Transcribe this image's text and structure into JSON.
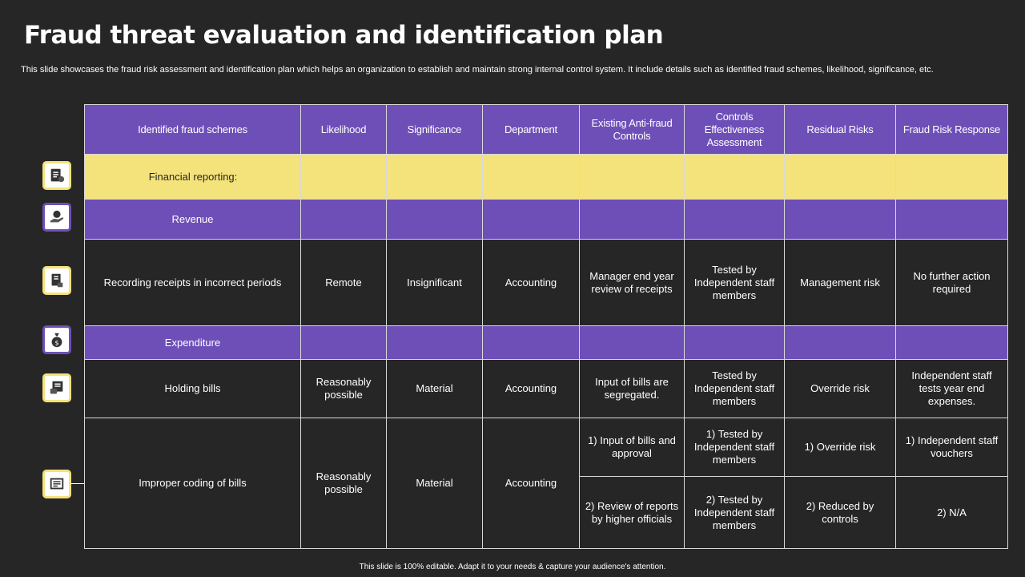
{
  "title": "Fraud threat evaluation and identification plan",
  "subtitle": "This slide showcases the fraud risk assessment and identification plan which helps an organization to establish and maintain strong internal control system. It include details such as identified fraud schemes, likelihood, significance, etc.",
  "columns": [
    "Identified fraud schemes",
    "Likelihood",
    "Significance",
    "Department",
    "Existing Anti-fraud Controls",
    "Controls Effectiveness Assessment",
    "Residual Risks",
    "Fraud Risk Response"
  ],
  "sections": {
    "financial_reporting": "Financial reporting:",
    "revenue": "Revenue",
    "expenditure": "Expenditure"
  },
  "rows": {
    "recording": {
      "scheme": "Recording receipts in incorrect periods",
      "likelihood": "Remote",
      "significance": "Insignificant",
      "department": "Accounting",
      "controls": "Manager end year review of receipts",
      "assessment": "Tested by Independent staff members",
      "residual": "Management risk",
      "response": "No further action required"
    },
    "holding": {
      "scheme": "Holding bills",
      "likelihood": "Reasonably possible",
      "significance": "Material",
      "department": "Accounting",
      "controls": "Input of bills are segregated.",
      "assessment": "Tested by Independent staff members",
      "residual": "Override risk",
      "response": "Independent staff tests year end expenses."
    },
    "improper": {
      "scheme": "Improper coding of bills",
      "likelihood": "Reasonably possible",
      "significance": "Material",
      "department": "Accounting",
      "controls_1": "1) Input of bills and approval",
      "assessment_1": "1) Tested by Independent staff members",
      "residual_1": "1) Override risk",
      "response_1": "1) Independent staff vouchers",
      "controls_2": "2) Review of reports by higher officials",
      "assessment_2": "2) Tested by Independent staff members",
      "residual_2": "2) Reduced by controls",
      "response_2": "2) N/A"
    }
  },
  "icons": [
    "report-document-icon",
    "hand-money-icon",
    "receipt-icon",
    "money-bag-icon",
    "bill-payment-icon",
    "invoice-coding-icon"
  ],
  "colors": {
    "background": "#262626",
    "purple": "#6e4fb8",
    "yellow": "#f4e27a"
  },
  "footer": "This slide is 100% editable. Adapt it to your needs & capture your audience's attention."
}
